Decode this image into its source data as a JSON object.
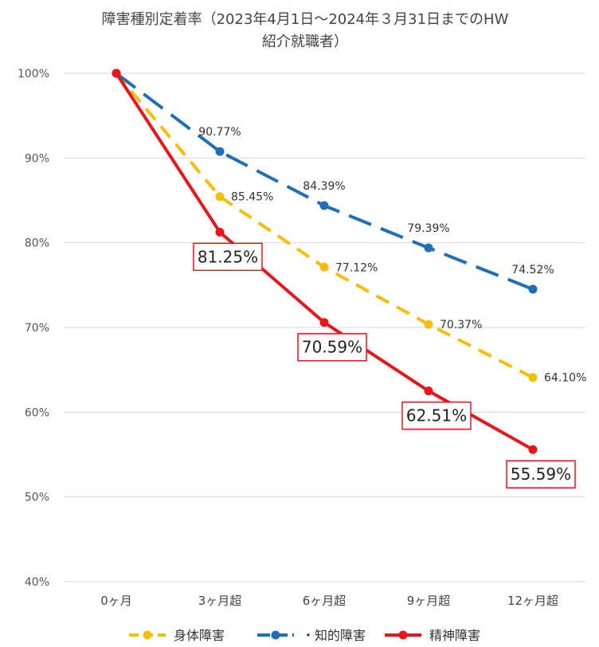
{
  "chart_data": {
    "type": "line",
    "title_lines": [
      "障害種別定着率（2023年4月1日～2024年３月31日までのHW",
      "紹介就職者）"
    ],
    "categories": [
      "0ヶ月",
      "3ヶ月超",
      "6ヶ月超",
      "9ヶ月超",
      "12ヶ月超"
    ],
    "yticks": [
      "100%",
      "90%",
      "80%",
      "70%",
      "60%",
      "50%",
      "40%"
    ],
    "ylim": [
      40,
      100
    ],
    "ystep": 10,
    "grid": true,
    "legend_position": "bottom",
    "series": [
      {
        "name": "身体障害",
        "values": [
          100,
          85.45,
          77.12,
          70.37,
          64.1
        ],
        "labels": [
          "",
          "85.45%",
          "77.12%",
          "70.37%",
          "64.10%"
        ],
        "color": "#f5be0b",
        "style": "short-dash",
        "label_style": "plain-right",
        "legend_text": "身体障害"
      },
      {
        "name": "知的障害",
        "values": [
          100,
          90.77,
          84.39,
          79.39,
          74.52
        ],
        "labels": [
          "",
          "90.77%",
          "84.39%",
          "79.39%",
          "74.52%"
        ],
        "color": "#1f6fb4",
        "style": "long-dash",
        "label_style": "plain-above",
        "legend_text": "・知的障害"
      },
      {
        "name": "精神障害",
        "values": [
          100,
          81.25,
          70.59,
          62.51,
          55.59
        ],
        "labels": [
          "",
          "81.25%",
          "70.59%",
          "62.51%",
          "55.59%"
        ],
        "color": "#e8161b",
        "style": "solid",
        "label_style": "boxed-below",
        "legend_text": "精神障害"
      }
    ]
  }
}
